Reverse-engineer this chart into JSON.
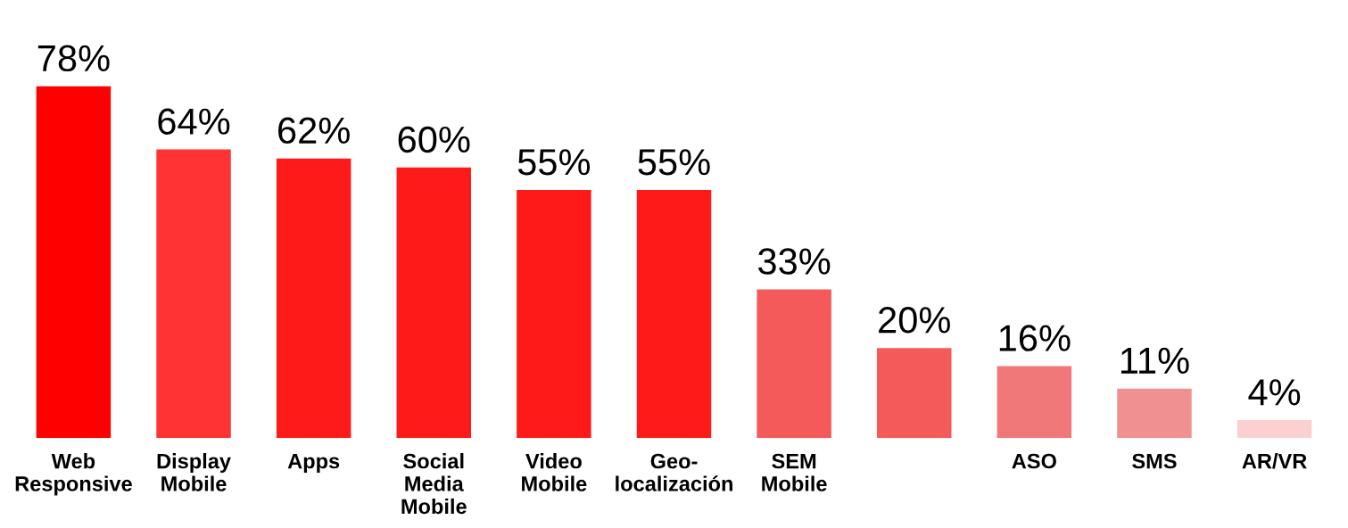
{
  "chart_data": {
    "type": "bar",
    "categories": [
      "Web\nResponsive",
      "Display\nMobile",
      "Apps",
      "Social\nMedia\nMobile",
      "Video\nMobile",
      "Geo-\nlocalización",
      "SEM\nMobile",
      null,
      "ASO",
      "SMS",
      "AR/VR"
    ],
    "values": [
      78,
      64,
      62,
      60,
      55,
      55,
      33,
      20,
      16,
      11,
      4
    ],
    "value_labels": [
      "78%",
      "64%",
      "62%",
      "60%",
      "55%",
      "55%",
      "33%",
      "20%",
      "16%",
      "11%",
      "4%"
    ],
    "colors": [
      "#ff0000",
      "#ff3333",
      "#ff1a1a",
      "#ff1a1a",
      "#ff1a1a",
      "#ff1a1a",
      "#f55a5a",
      "#f55a5a",
      "#f07878",
      "#f09090",
      "#fcd0d0"
    ],
    "tick_labels": "x",
    "grid": false,
    "legend": false
  }
}
